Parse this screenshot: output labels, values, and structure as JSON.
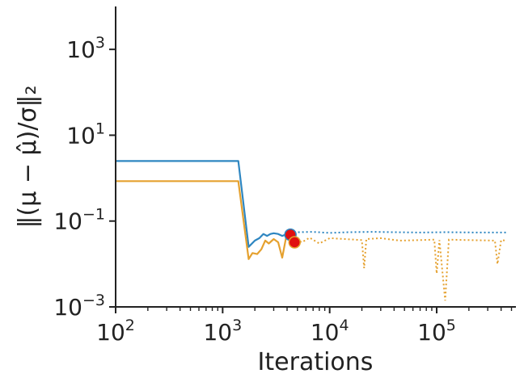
{
  "chart_data": {
    "type": "line",
    "xlabel": "Iterations",
    "ylabel": "‖(μ − μ̂)/σ‖₂",
    "xscale": "log",
    "yscale": "log",
    "xlim": [
      100,
      550000
    ],
    "ylim": [
      0.001,
      10000
    ],
    "x_ticks": [
      {
        "value": 100,
        "base": "10",
        "exp": "2"
      },
      {
        "value": 1000,
        "base": "10",
        "exp": "3"
      },
      {
        "value": 10000,
        "base": "10",
        "exp": "4"
      },
      {
        "value": 100000,
        "base": "10",
        "exp": "5"
      }
    ],
    "y_ticks": [
      {
        "value": 0.001,
        "base": "10",
        "exp": "−3"
      },
      {
        "value": 0.1,
        "base": "10",
        "exp": "−1"
      },
      {
        "value": 10,
        "base": "10",
        "exp": "1"
      },
      {
        "value": 1000,
        "base": "10",
        "exp": "3"
      }
    ],
    "grid": false,
    "series": [
      {
        "color": "#2e86c1",
        "solid": [
          [
            100,
            2.5
          ],
          [
            1400,
            2.5
          ],
          [
            1750,
            0.025
          ],
          [
            2000,
            0.035
          ],
          [
            2200,
            0.04
          ],
          [
            2400,
            0.05
          ],
          [
            2600,
            0.045
          ],
          [
            2800,
            0.05
          ],
          [
            3000,
            0.052
          ],
          [
            3300,
            0.05
          ],
          [
            3600,
            0.045
          ],
          [
            4000,
            0.05
          ],
          [
            4300,
            0.048
          ]
        ],
        "dotted": [
          [
            4300,
            0.048
          ],
          [
            5000,
            0.055
          ],
          [
            7000,
            0.056
          ],
          [
            10000,
            0.053
          ],
          [
            15000,
            0.055
          ],
          [
            25000,
            0.056
          ],
          [
            40000,
            0.055
          ],
          [
            70000,
            0.054
          ],
          [
            120000,
            0.055
          ],
          [
            250000,
            0.054
          ],
          [
            450000,
            0.054
          ]
        ]
      },
      {
        "color": "#e5a12f",
        "solid": [
          [
            100,
            0.85
          ],
          [
            1400,
            0.85
          ],
          [
            1750,
            0.013
          ],
          [
            1900,
            0.018
          ],
          [
            2100,
            0.017
          ],
          [
            2300,
            0.022
          ],
          [
            2500,
            0.035
          ],
          [
            2700,
            0.03
          ],
          [
            3000,
            0.038
          ],
          [
            3300,
            0.032
          ],
          [
            3600,
            0.014
          ],
          [
            3900,
            0.04
          ],
          [
            4200,
            0.042
          ],
          [
            4500,
            0.04
          ]
        ],
        "dotted": [
          [
            4500,
            0.04
          ],
          [
            5500,
            0.032
          ],
          [
            6500,
            0.041
          ],
          [
            8000,
            0.03
          ],
          [
            10000,
            0.04
          ],
          [
            14000,
            0.038
          ],
          [
            20000,
            0.036
          ],
          [
            21000,
            0.008
          ],
          [
            22000,
            0.038
          ],
          [
            30000,
            0.04
          ],
          [
            45000,
            0.035
          ],
          [
            70000,
            0.036
          ],
          [
            95000,
            0.037
          ],
          [
            100000,
            0.006
          ],
          [
            106000,
            0.036
          ],
          [
            120000,
            0.0014
          ],
          [
            130000,
            0.037
          ],
          [
            200000,
            0.036
          ],
          [
            350000,
            0.035
          ],
          [
            370000,
            0.01
          ],
          [
            400000,
            0.036
          ],
          [
            450000,
            0.035
          ]
        ]
      }
    ],
    "markers": [
      {
        "x": 4300,
        "y": 0.048,
        "color": "#e01010",
        "edge": "#2e86c1"
      },
      {
        "x": 4700,
        "y": 0.032,
        "color": "#e01010",
        "edge": "#e5a12f"
      }
    ]
  }
}
